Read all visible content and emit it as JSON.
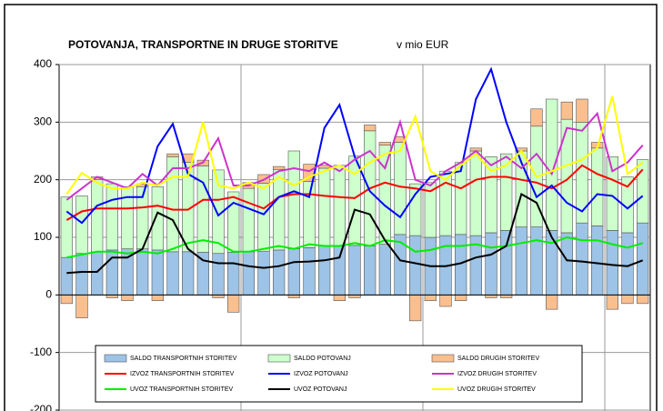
{
  "chart_data": {
    "type": "bar",
    "title": "POTOVANJA, TRANSPORTNE IN DRUGE STORITVE",
    "subtitle": "v mio EUR",
    "categories": [
      null,
      null,
      null,
      null,
      null,
      null,
      null,
      null,
      null,
      null,
      null,
      null,
      null,
      null,
      null,
      null,
      null,
      null,
      null,
      null,
      null,
      null,
      null,
      null,
      null,
      null,
      null,
      null,
      null,
      null,
      null,
      null,
      null,
      null,
      null,
      null,
      null,
      null,
      null
    ],
    "ylim": [
      -200,
      400
    ],
    "yticks": [
      -200,
      -100,
      0,
      100,
      200,
      300,
      400
    ],
    "grid": true,
    "series": [
      {
        "name": "SALDO TRANSPORTNIH STORITEV",
        "type": "bar",
        "color": "#9dc3e6",
        "values": [
          65,
          72,
          75,
          78,
          80,
          80,
          78,
          75,
          75,
          74,
          72,
          74,
          75,
          76,
          78,
          80,
          82,
          85,
          85,
          86,
          85,
          88,
          105,
          103,
          100,
          103,
          105,
          103,
          108,
          112,
          118,
          118,
          112,
          108,
          125,
          120,
          112,
          108,
          125
        ]
      },
      {
        "name": "SALDO POTOVANJ",
        "type": "bar",
        "color": "#ccffcc",
        "values": [
          105,
          100,
          125,
          115,
          108,
          108,
          110,
          165,
          155,
          150,
          145,
          105,
          110,
          118,
          140,
          170,
          115,
          135,
          140,
          155,
          200,
          172,
          160,
          90,
          95,
          112,
          125,
          147,
          132,
          133,
          132,
          175,
          228,
          197,
          175,
          135,
          128,
          97,
          110
        ]
      },
      {
        "name": "SALDO DRUGIH STORITEV",
        "type": "bar",
        "color": "#fabf8f",
        "values": [
          -15,
          -40,
          5,
          -5,
          -10,
          5,
          -10,
          5,
          15,
          10,
          -5,
          -30,
          10,
          15,
          5,
          -5,
          30,
          5,
          -10,
          -5,
          10,
          5,
          10,
          -45,
          -10,
          -20,
          -10,
          5,
          -5,
          -5,
          5,
          30,
          -25,
          30,
          40,
          10,
          -25,
          -15,
          -15
        ]
      },
      {
        "name": "IZVOZ TRANSPORTNIH STORITEV",
        "type": "line",
        "color": "#ff0000",
        "values": [
          130,
          145,
          150,
          150,
          150,
          152,
          155,
          148,
          148,
          165,
          165,
          170,
          160,
          150,
          170,
          175,
          175,
          172,
          170,
          168,
          185,
          195,
          188,
          185,
          180,
          195,
          185,
          200,
          205,
          205,
          200,
          195,
          185,
          200,
          225,
          210,
          200,
          188,
          218
        ]
      },
      {
        "name": "IZVOZ POTOVANJ",
        "type": "line",
        "color": "#0000ff",
        "values": [
          145,
          125,
          155,
          165,
          170,
          170,
          258,
          297,
          210,
          195,
          138,
          160,
          150,
          140,
          170,
          180,
          170,
          290,
          330,
          240,
          180,
          155,
          135,
          175,
          205,
          210,
          215,
          340,
          392,
          300,
          230,
          170,
          190,
          160,
          145,
          175,
          172,
          150,
          172
        ]
      },
      {
        "name": "IZVOZ DRUGIH STORITEV",
        "type": "line",
        "color": "#cc33cc",
        "values": [
          165,
          185,
          205,
          195,
          185,
          210,
          190,
          220,
          220,
          230,
          272,
          190,
          190,
          200,
          215,
          220,
          215,
          230,
          215,
          235,
          250,
          220,
          300,
          200,
          190,
          215,
          230,
          250,
          225,
          240,
          220,
          245,
          210,
          290,
          285,
          315,
          215,
          230,
          260
        ]
      },
      {
        "name": "UVOZ TRANSPORTNIH STORITEV",
        "type": "line",
        "color": "#00ee00",
        "values": [
          65,
          70,
          75,
          75,
          72,
          75,
          72,
          80,
          90,
          95,
          90,
          75,
          75,
          80,
          85,
          80,
          88,
          85,
          85,
          90,
          85,
          95,
          92,
          75,
          78,
          85,
          85,
          88,
          82,
          85,
          90,
          95,
          90,
          100,
          95,
          95,
          88,
          82,
          90
        ]
      },
      {
        "name": "UVOZ POTOVANJ",
        "type": "line",
        "color": "#000000",
        "values": [
          38,
          40,
          40,
          65,
          65,
          80,
          143,
          130,
          80,
          60,
          55,
          55,
          50,
          47,
          50,
          57,
          58,
          60,
          65,
          148,
          140,
          95,
          60,
          55,
          50,
          50,
          55,
          65,
          70,
          85,
          175,
          160,
          100,
          60,
          58,
          55,
          52,
          50,
          60
        ]
      },
      {
        "name": "UVOZ DRUGIH STORITEV",
        "type": "line",
        "color": "#ffff00",
        "values": [
          175,
          212,
          195,
          185,
          185,
          195,
          190,
          205,
          205,
          300,
          190,
          185,
          195,
          185,
          205,
          190,
          205,
          215,
          225,
          210,
          230,
          245,
          250,
          310,
          215,
          200,
          225,
          245,
          215,
          225,
          250,
          205,
          215,
          225,
          235,
          255,
          345,
          210,
          230
        ]
      }
    ]
  }
}
